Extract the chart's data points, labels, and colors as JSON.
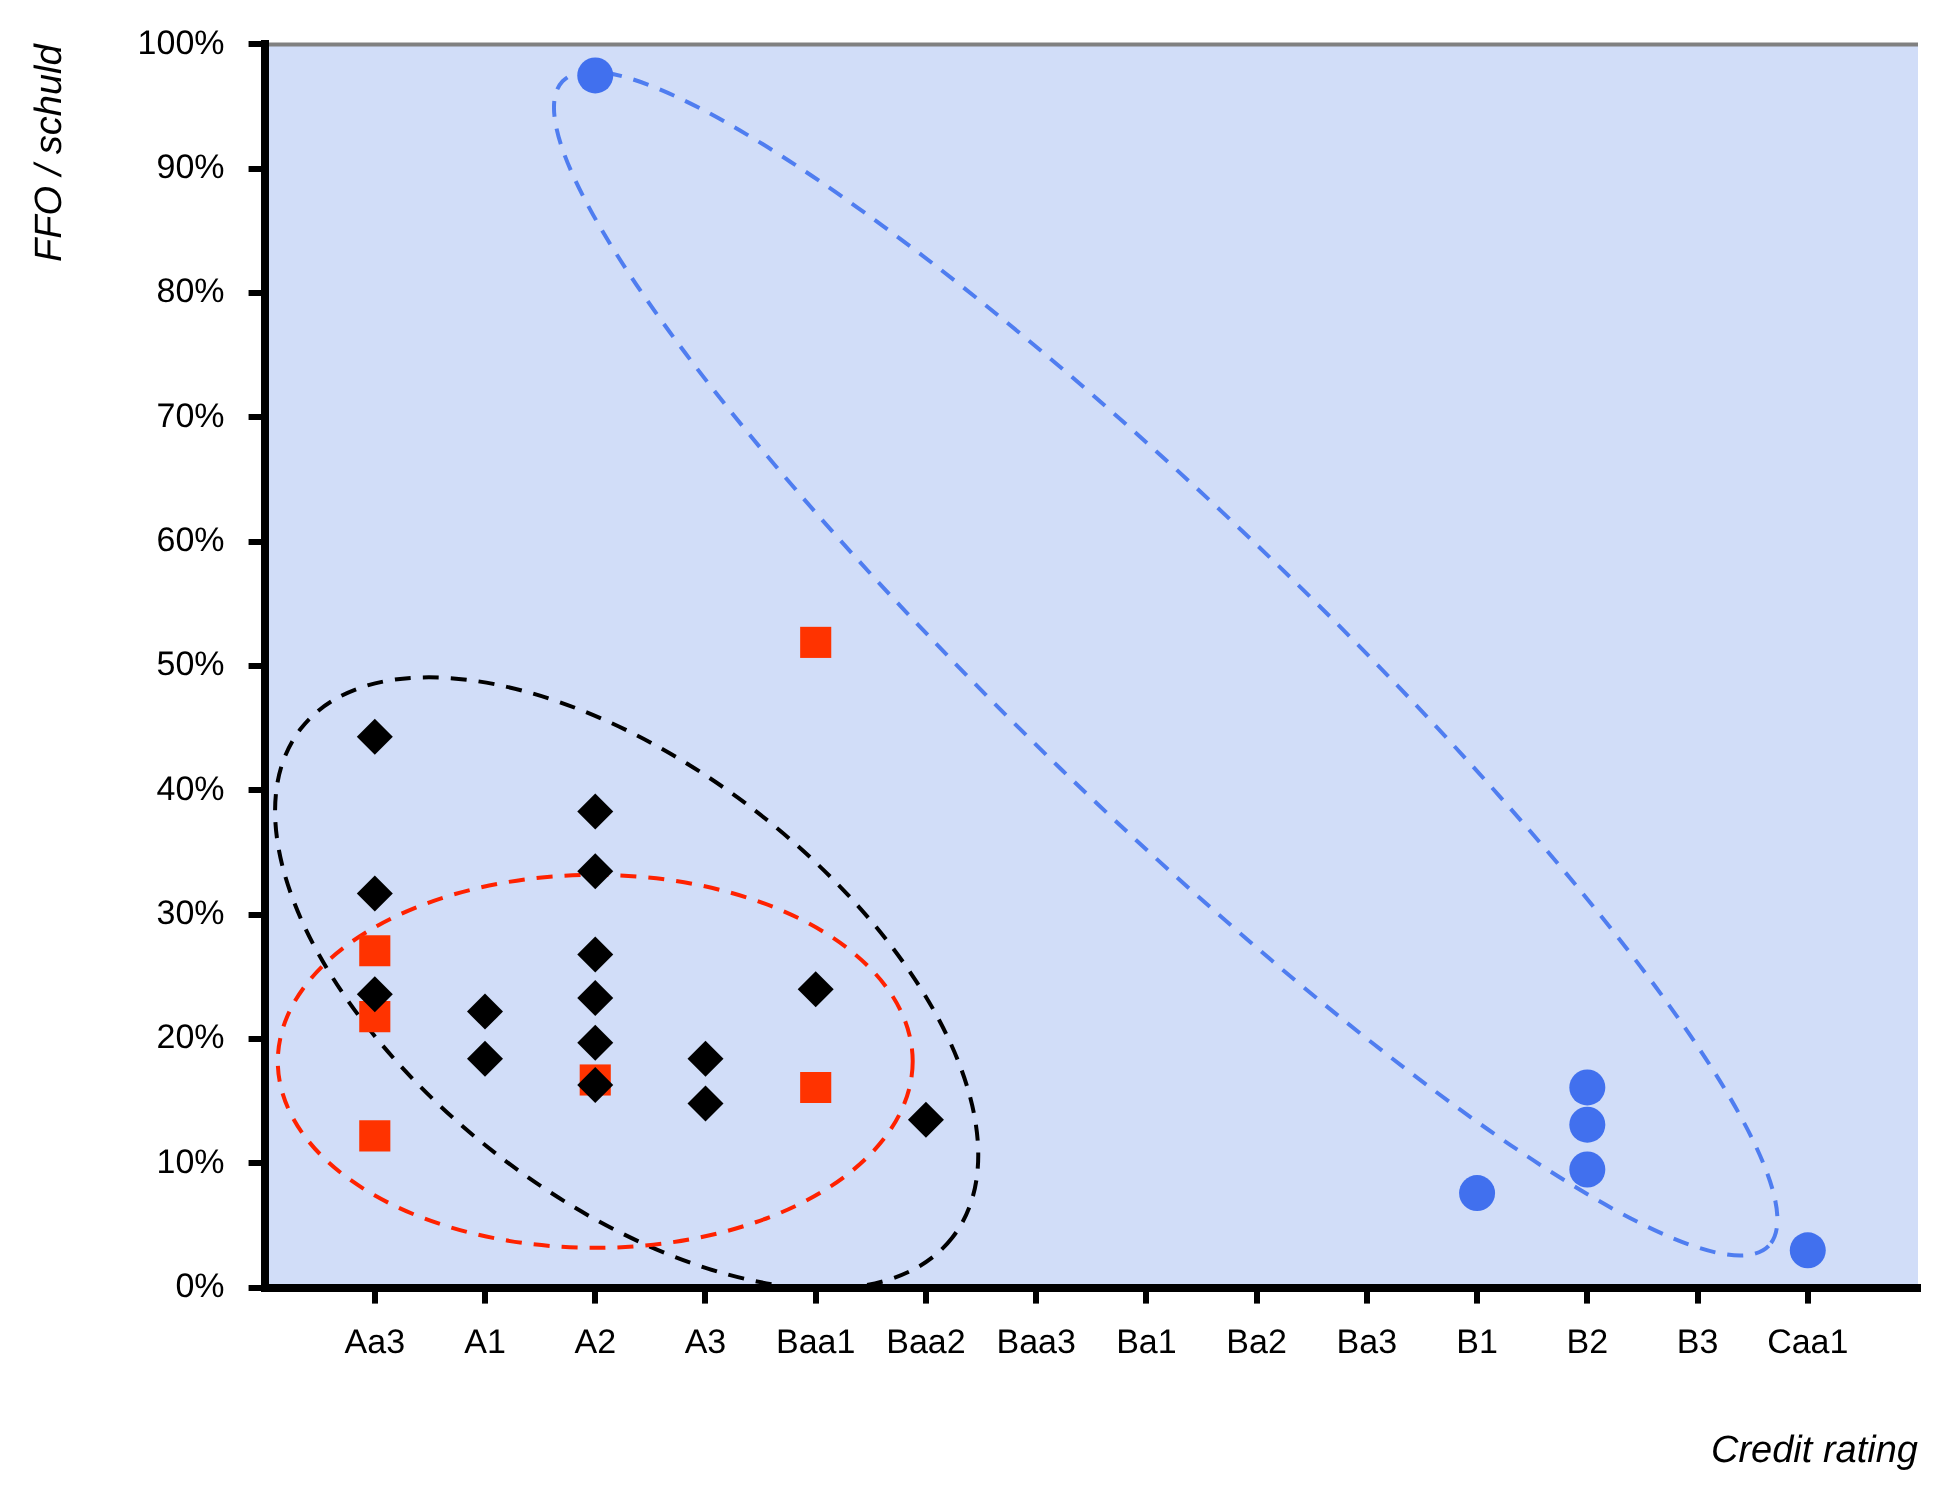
{
  "chart_data": {
    "type": "scatter",
    "ylabel": "FFO / schuld",
    "xlabel": "Credit rating",
    "categories": [
      "Aa3",
      "A1",
      "A2",
      "A3",
      "Baa1",
      "Baa2",
      "Baa3",
      "Ba1",
      "Ba2",
      "Ba3",
      "B1",
      "B2",
      "B3",
      "Caa1"
    ],
    "ylim": [
      0,
      100
    ],
    "yticks": [
      {
        "value": 0,
        "label": "0%"
      },
      {
        "value": 10,
        "label": "10%"
      },
      {
        "value": 20,
        "label": "20%"
      },
      {
        "value": 30,
        "label": "30%"
      },
      {
        "value": 40,
        "label": "40%"
      },
      {
        "value": 50,
        "label": "50%"
      },
      {
        "value": 60,
        "label": "60%"
      },
      {
        "value": 70,
        "label": "70%"
      },
      {
        "value": 80,
        "label": "80%"
      },
      {
        "value": 90,
        "label": "90%"
      },
      {
        "value": 100,
        "label": "100%"
      }
    ],
    "grid": false,
    "legend": false,
    "series": [
      {
        "color": "#000000",
        "marker": "diamond",
        "x": [
          "Aa3",
          "Aa3",
          "Aa3",
          "A1",
          "A1",
          "A2",
          "A2",
          "A2",
          "A2",
          "A2",
          "A2",
          "A3",
          "A3",
          "Baa1",
          "Baa2"
        ],
        "values": [
          44.3,
          31.7,
          23.6,
          22.2,
          18.4,
          38.3,
          33.5,
          26.8,
          23.3,
          19.7,
          16.3,
          18.4,
          14.8,
          24.0,
          13.5
        ]
      },
      {
        "color": "#ff3300",
        "marker": "square",
        "x": [
          "Aa3",
          "Aa3",
          "Aa3",
          "A2",
          "Baa1",
          "Baa1"
        ],
        "values": [
          27.1,
          21.8,
          12.2,
          16.7,
          51.9,
          16.1
        ]
      },
      {
        "color": "#4170ee",
        "marker": "circle",
        "x": [
          "A2",
          "B1",
          "B2",
          "B2",
          "B2",
          "Caa1"
        ],
        "values": [
          97.5,
          7.6,
          16.1,
          13.1,
          9.5,
          3.0
        ]
      }
    ]
  }
}
